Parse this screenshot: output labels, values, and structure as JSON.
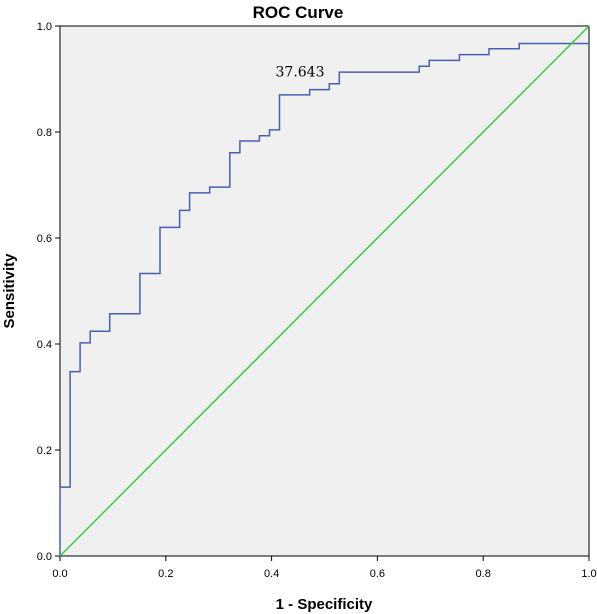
{
  "chart_data": {
    "type": "line",
    "title": "ROC Curve",
    "xlabel": "1 - Specificity",
    "ylabel": "Sensitivity",
    "xlim": [
      0,
      1
    ],
    "ylim": [
      0,
      1
    ],
    "x_ticks": [
      0.0,
      0.2,
      0.4,
      0.6,
      0.8,
      1.0
    ],
    "y_ticks": [
      0.0,
      0.2,
      0.4,
      0.6,
      0.8,
      1.0
    ],
    "x_tick_labels": [
      "0.0",
      "0.2",
      "0.4",
      "0.6",
      "0.8",
      "1.0"
    ],
    "y_tick_labels": [
      "0.0",
      "0.2",
      "0.4",
      "0.6",
      "0.8",
      "1.0"
    ],
    "grid": false,
    "series": [
      {
        "color": "#4a5fb0",
        "x": [
          0.0,
          0.0,
          0.019,
          0.019,
          0.038,
          0.038,
          0.057,
          0.057,
          0.094,
          0.094,
          0.151,
          0.151,
          0.189,
          0.189,
          0.226,
          0.226,
          0.245,
          0.245,
          0.283,
          0.283,
          0.321,
          0.321,
          0.34,
          0.34,
          0.377,
          0.377,
          0.396,
          0.396,
          0.415,
          0.415,
          0.472,
          0.472,
          0.509,
          0.509,
          0.528,
          0.528,
          0.679,
          0.679,
          0.698,
          0.698,
          0.755,
          0.755,
          0.811,
          0.811,
          0.868,
          0.868,
          1.0
        ],
        "y": [
          0.0,
          0.13,
          0.13,
          0.348,
          0.348,
          0.402,
          0.402,
          0.424,
          0.424,
          0.457,
          0.457,
          0.533,
          0.533,
          0.62,
          0.62,
          0.652,
          0.652,
          0.685,
          0.685,
          0.696,
          0.696,
          0.761,
          0.761,
          0.783,
          0.783,
          0.793,
          0.793,
          0.804,
          0.804,
          0.87,
          0.87,
          0.88,
          0.88,
          0.891,
          0.891,
          0.913,
          0.913,
          0.924,
          0.924,
          0.935,
          0.935,
          0.946,
          0.946,
          0.957,
          0.957,
          0.967,
          0.967
        ]
      },
      {
        "color": "#3ec93e",
        "x": [
          0,
          1
        ],
        "y": [
          0,
          1
        ]
      }
    ],
    "annotations": [
      {
        "text": "37.643",
        "x": 0.5,
        "y": 0.905
      }
    ]
  }
}
